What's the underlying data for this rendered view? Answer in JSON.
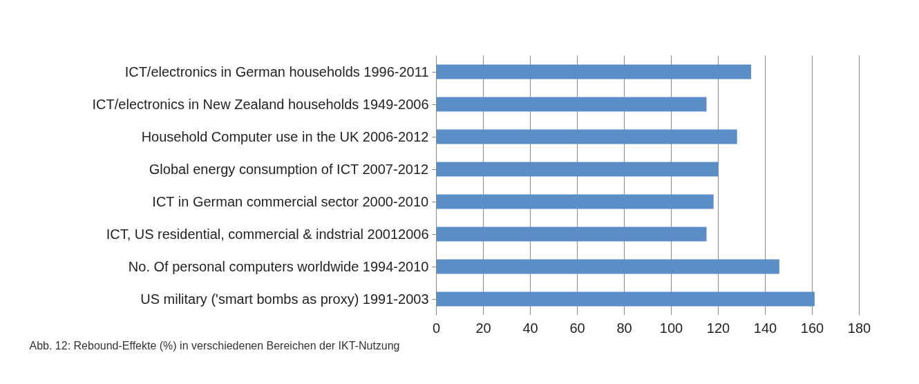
{
  "chart_data": {
    "type": "bar",
    "orientation": "horizontal",
    "categories": [
      "ICT/electronics in German households 1996-2011",
      "ICT/electronics in New Zealand households 1949-2006",
      "Household Computer use in the UK 2006-2012",
      "Global energy consumption of ICT 2007-2012",
      "ICT in German commercial sector 2000-2010",
      "ICT, US residential, commercial & indstrial 20012006",
      "No. Of personal computers worldwide 1994-2010",
      "US military ('smart bombs as proxy) 1991-2003"
    ],
    "values": [
      134,
      115,
      128,
      120,
      118,
      115,
      146,
      161
    ],
    "color": "#5b8ec7",
    "xlim": [
      0,
      180
    ],
    "xticks": [
      0,
      20,
      40,
      60,
      80,
      100,
      120,
      140,
      160,
      180
    ],
    "grid": "x",
    "annotations": [
      "Abb. 12: Rebound-Effekte (%) in verschiedenen Bereichen der IKT-Nutzung"
    ]
  }
}
